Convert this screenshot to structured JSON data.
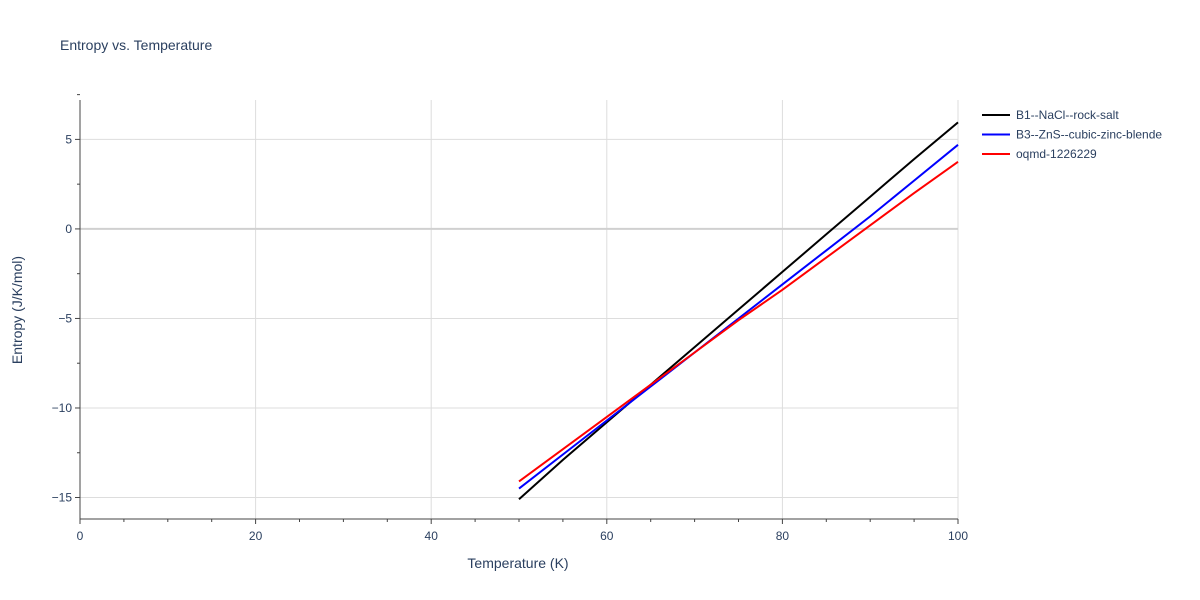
{
  "chart_data": {
    "type": "line",
    "title": "Entropy vs. Temperature",
    "xlabel": "Temperature (K)",
    "ylabel": "Entropy (J/K/mol)",
    "xlim": [
      0,
      100
    ],
    "ylim": [
      -16.2,
      7.2
    ],
    "x_ticks": [
      0,
      20,
      40,
      60,
      80,
      100
    ],
    "x_tick_labels": [
      "0",
      "20",
      "40",
      "60",
      "80",
      "100"
    ],
    "x_minor_ticks": [
      5,
      10,
      15,
      25,
      30,
      35,
      45,
      50,
      55,
      65,
      70,
      75,
      85,
      90,
      95
    ],
    "y_ticks": [
      5,
      0,
      -5,
      -10,
      -15
    ],
    "y_tick_labels": [
      "5",
      "0",
      "−5",
      "−10",
      "−15"
    ],
    "y_minor_ticks": [
      7.5,
      2.5,
      -2.5,
      -7.5,
      -12.5
    ],
    "grid": true,
    "legend_position": "top-right",
    "series": [
      {
        "name": "B1--NaCl--rock-salt",
        "color": "#000000",
        "x": [
          50,
          55,
          60,
          65,
          70,
          75,
          80,
          85,
          90,
          95,
          100
        ],
        "y": [
          -15.1,
          -12.9,
          -10.8,
          -8.7,
          -6.6,
          -4.5,
          -2.4,
          -0.3,
          1.8,
          3.9,
          5.95
        ]
      },
      {
        "name": "B3--ZnS--cubic-zinc-blende",
        "color": "#0000ff",
        "x": [
          50,
          55,
          60,
          65,
          70,
          75,
          80,
          85,
          90,
          95,
          100
        ],
        "y": [
          -14.5,
          -12.6,
          -10.7,
          -8.8,
          -6.9,
          -5.0,
          -3.1,
          -1.2,
          0.7,
          2.7,
          4.7
        ]
      },
      {
        "name": "oqmd-1226229",
        "color": "#ff0000",
        "x": [
          50,
          55,
          60,
          65,
          70,
          75,
          80,
          85,
          90,
          95,
          100
        ],
        "y": [
          -14.1,
          -12.3,
          -10.5,
          -8.7,
          -6.9,
          -5.1,
          -3.4,
          -1.6,
          0.2,
          2.0,
          3.75
        ]
      }
    ]
  }
}
